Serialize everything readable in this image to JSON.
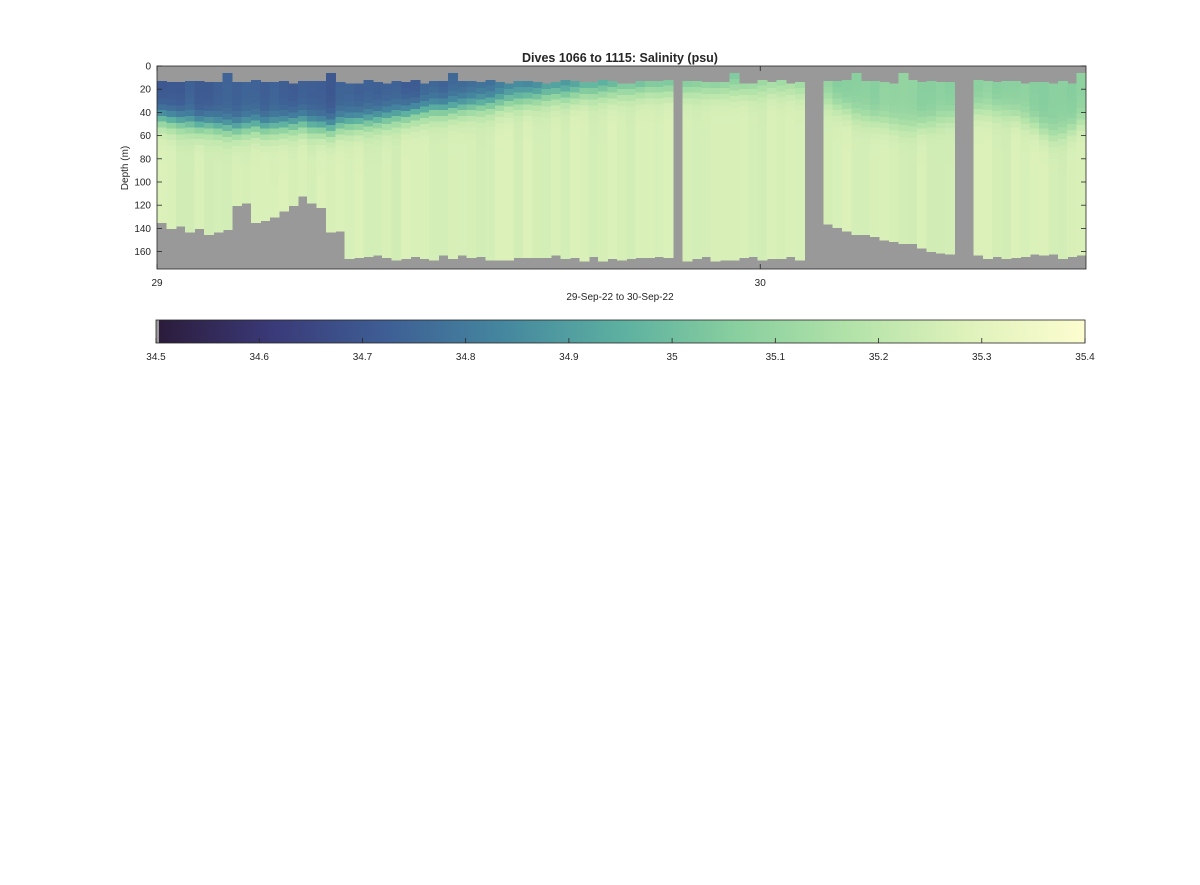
{
  "chart_data": {
    "type": "heatmap",
    "title": "Dives 1066 to 1115: Salinity (psu)",
    "xlabel": "29-Sep-22 to 30-Sep-22",
    "ylabel": "Depth (m)",
    "x_ticks": [
      {
        "label": "29",
        "value": 29.0
      },
      {
        "label": "30",
        "value": 30.0
      }
    ],
    "xlim": [
      29.0,
      30.54
    ],
    "y_ticks": [
      0,
      20,
      40,
      60,
      80,
      100,
      120,
      140,
      160
    ],
    "ylim": [
      0,
      175
    ],
    "y_reversed": true,
    "grid": false,
    "missing_color": "#999999",
    "profile_count": 99,
    "surface_fresh_layer_depth_m": [
      38,
      40,
      41,
      42,
      44,
      43,
      45,
      46,
      47,
      45,
      44,
      46,
      45,
      44,
      43,
      42,
      44,
      45,
      46,
      43,
      42,
      41,
      40,
      39,
      38,
      36,
      35,
      33,
      32,
      30,
      30,
      29,
      28,
      27,
      26,
      25,
      24,
      22,
      21,
      20,
      19,
      18,
      17,
      17,
      16,
      15,
      15,
      14,
      14,
      13,
      13,
      13,
      12,
      12,
      12,
      12,
      12,
      12,
      12,
      12,
      12,
      12,
      12,
      12,
      12,
      12,
      12,
      12,
      14,
      16,
      18,
      22,
      26,
      30,
      34,
      36,
      38,
      40,
      42,
      44,
      44,
      42,
      40,
      38,
      36,
      34,
      32,
      30,
      30,
      30,
      32,
      34,
      38,
      42,
      48,
      52,
      50,
      46,
      40
    ],
    "colorbar": {
      "position": "horizontal-below",
      "min": 34.5,
      "max": 35.4,
      "ticks": [
        "34.5",
        "34.6",
        "34.7",
        "34.8",
        "34.9",
        "35",
        "35.1",
        "35.2",
        "35.3",
        "35.4"
      ],
      "colors": [
        "#2b1b3a",
        "#3a3a78",
        "#3e5f95",
        "#45879f",
        "#5cb0a0",
        "#89cf9f",
        "#b3e3a9",
        "#dff2bb",
        "#fdfdd0"
      ]
    }
  }
}
